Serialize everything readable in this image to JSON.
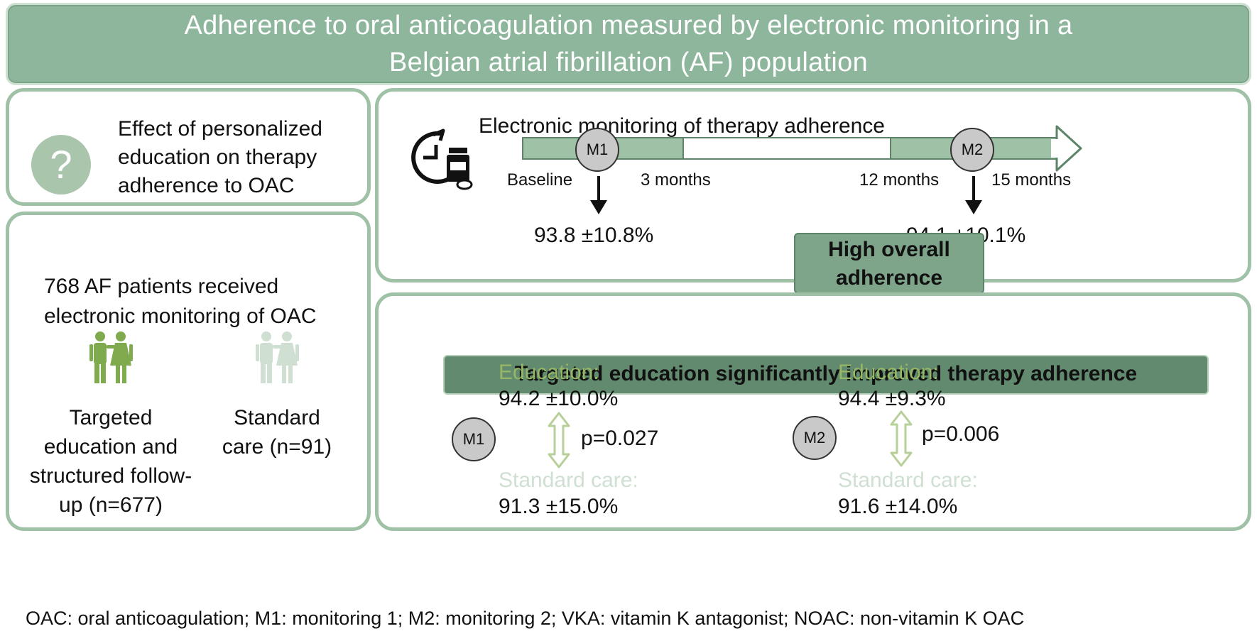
{
  "title": {
    "line1": "Adherence to oral anticoagulation measured by electronic monitoring in a",
    "line2": "Belgian atrial fibrillation (AF) population"
  },
  "question_panel": {
    "icon": "question-mark-icon",
    "line1": "Effect of personalized",
    "line2": "education on therapy",
    "line3": "adherence to OAC"
  },
  "patients_panel": {
    "line1": "768 AF patients received",
    "line2": "electronic monitoring of OAC",
    "education_group": {
      "icon": "couple-icon",
      "color": "#7faa4e",
      "line1": "Targeted",
      "line2": "education and",
      "line3": "structured follow-",
      "line4": "up (n=677)"
    },
    "standard_group": {
      "icon": "couple-icon",
      "color": "#cfe0d2",
      "line1": "Standard",
      "line2": "care (n=91)"
    }
  },
  "monitoring_panel": {
    "title": "Electronic monitoring of therapy adherence",
    "icon": "clock-medication-icon",
    "markers": [
      "M1",
      "M2"
    ],
    "timeline_labels": [
      "Baseline",
      "3 months",
      "12 months",
      "15 months"
    ],
    "m1_value": "93.8 ±10.8%",
    "m2_value": "94.1 ±10.1%",
    "highlight_line1": "High overall",
    "highlight_line2": "adherence"
  },
  "education_panel": {
    "banner": "Targeted education significantly  improved therapy adherence",
    "m1": {
      "marker": "M1",
      "education_label": "Education:",
      "education_value": "94.2 ±10.0%",
      "p_value": "p=0.027",
      "standard_label": "Standard care:",
      "standard_value": "91.3 ±15.0%"
    },
    "m2": {
      "marker": "M2",
      "education_label": "Education:",
      "education_value": "94.4 ±9.3%",
      "p_value": "p=0.006",
      "standard_label": "Standard care:",
      "standard_value": "91.6 ±14.0%"
    }
  },
  "footnote": "OAC: oral anticoagulation; M1:  monitoring 1; M2:  monitoring 2; VKA:  vitamin K antagonist; NOAC:  non-vitamin K OAC",
  "colors": {
    "banner": "#8db69c",
    "panel_border": "#9fc1a6",
    "education_green": "#96b864",
    "standard_pale": "#cfe0d2",
    "dark_banner": "#628a6f"
  }
}
